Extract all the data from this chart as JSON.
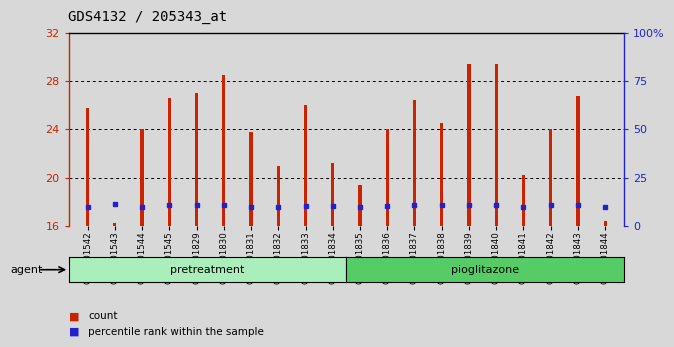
{
  "title": "GDS4132 / 205343_at",
  "samples": [
    "GSM201542",
    "GSM201543",
    "GSM201544",
    "GSM201545",
    "GSM201829",
    "GSM201830",
    "GSM201831",
    "GSM201832",
    "GSM201833",
    "GSM201834",
    "GSM201835",
    "GSM201836",
    "GSM201837",
    "GSM201838",
    "GSM201839",
    "GSM201840",
    "GSM201841",
    "GSM201842",
    "GSM201843",
    "GSM201844"
  ],
  "red_values": [
    25.8,
    16.2,
    24.0,
    26.6,
    27.0,
    28.5,
    23.8,
    21.0,
    26.0,
    21.2,
    19.4,
    24.0,
    26.4,
    24.5,
    29.4,
    29.4,
    20.2,
    24.0,
    26.8,
    16.4
  ],
  "blue_y_values": [
    17.6,
    17.8,
    17.6,
    17.7,
    17.7,
    17.7,
    17.6,
    17.6,
    17.65,
    17.65,
    17.6,
    17.65,
    17.7,
    17.7,
    17.75,
    17.75,
    17.6,
    17.7,
    17.7,
    17.55
  ],
  "pretreatment_count": 10,
  "ylim": [
    16,
    32
  ],
  "yticks": [
    16,
    20,
    24,
    28,
    32
  ],
  "y2lim": [
    0,
    100
  ],
  "y2ticks": [
    0,
    25,
    50,
    75,
    100
  ],
  "y2ticklabels": [
    "0",
    "25",
    "50",
    "75",
    "100%"
  ],
  "bar_color": "#cc2200",
  "blue_color": "#2222cc",
  "pretreatment_color": "#aaeebb",
  "pioglitazone_color": "#55cc66",
  "agent_label": "agent",
  "pretreatment_label": "pretreatment",
  "pioglitazone_label": "pioglitazone",
  "legend_red": "count",
  "legend_blue": "percentile rank within the sample",
  "bg_color": "#d8d8d8",
  "plot_bg": "#d8d8d8",
  "title_fontsize": 10,
  "bar_width": 0.12
}
